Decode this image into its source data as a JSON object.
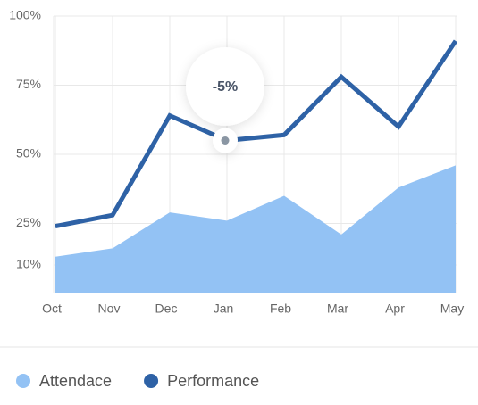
{
  "chart_data": {
    "type": "line_area",
    "categories": [
      "Oct",
      "Nov",
      "Dec",
      "Jan",
      "Feb",
      "Mar",
      "Apr",
      "May"
    ],
    "series": [
      {
        "name": "Attendace",
        "color": "#93c2f4",
        "kind": "area",
        "values": [
          13,
          16,
          29,
          26,
          35,
          21,
          38,
          46
        ]
      },
      {
        "name": "Performance",
        "color": "#2e62a6",
        "kind": "line",
        "values": [
          24,
          28,
          64,
          55,
          57,
          78,
          60,
          91
        ]
      }
    ],
    "ylim": [
      0,
      100
    ],
    "yticks": [
      {
        "value": 100,
        "label": "100%"
      },
      {
        "value": 75,
        "label": "75%"
      },
      {
        "value": 50,
        "label": "50%"
      },
      {
        "value": 25,
        "label": "25%"
      },
      {
        "value": 10,
        "label": "10%"
      }
    ],
    "grid": true,
    "annotation": {
      "text": "-5%",
      "x": "Jan"
    },
    "legend": "bottom-left"
  }
}
